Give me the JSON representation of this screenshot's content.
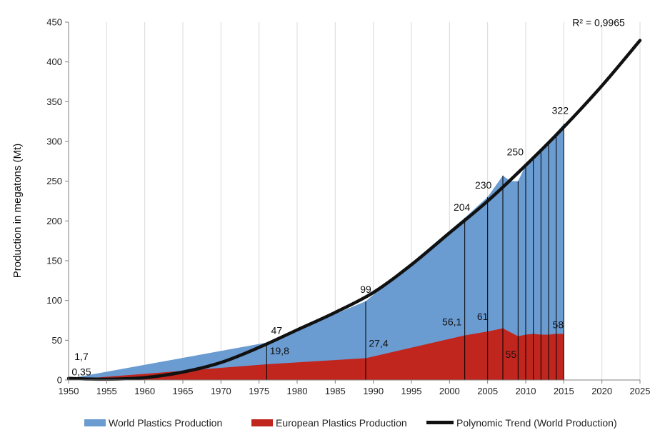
{
  "chart_data": {
    "type": "area",
    "ylabel": "Production in megatons (Mt)",
    "xlabel": "",
    "xlim": [
      1950,
      2025
    ],
    "ylim": [
      0,
      450
    ],
    "x_ticks": [
      1950,
      1955,
      1960,
      1965,
      1970,
      1975,
      1980,
      1985,
      1990,
      1995,
      2000,
      2005,
      2010,
      2015,
      2020,
      2025
    ],
    "y_ticks": [
      0,
      50,
      100,
      150,
      200,
      250,
      300,
      350,
      400,
      450
    ],
    "x_tick_labels": [
      "1950",
      "1955",
      "1960",
      "1965",
      "1970",
      "1975",
      "1980",
      "1985",
      "1990",
      "1995",
      "2000",
      "2005",
      "2010",
      "2015",
      "2020",
      "2025"
    ],
    "y_tick_labels": [
      "0",
      "50",
      "100",
      "150",
      "200",
      "250",
      "300",
      "350",
      "400",
      "450"
    ],
    "grid": "vertical",
    "legend_position": "bottom",
    "series": [
      {
        "name": "World Plastics Production",
        "color": "#6a9bd1",
        "x": [
          1950,
          1976,
          1989,
          2002,
          2005,
          2007,
          2008,
          2009,
          2010,
          2011,
          2012,
          2013,
          2014,
          2015
        ],
        "values": [
          1.7,
          47,
          99,
          204,
          230,
          257,
          250,
          250,
          270,
          280,
          288,
          299,
          311,
          322
        ]
      },
      {
        "name": "European Plastics Production",
        "color": "#c0251e",
        "x": [
          1950,
          1976,
          1989,
          2002,
          2005,
          2007,
          2008,
          2009,
          2010,
          2011,
          2012,
          2013,
          2014,
          2015
        ],
        "values": [
          0.35,
          19.8,
          27.4,
          56.1,
          61,
          65,
          60,
          55,
          57,
          58,
          57,
          57,
          58,
          58
        ]
      },
      {
        "name": "Polynomic Trend (World Production)",
        "color": "#111111",
        "x": [
          1950,
          1955,
          1960,
          1965,
          1970,
          1975,
          1980,
          1985,
          1990,
          1995,
          2000,
          2005,
          2010,
          2015,
          2020,
          2025
        ],
        "values": [
          2,
          1,
          3,
          10,
          22,
          41,
          63,
          85,
          110,
          145,
          185,
          225,
          270,
          318,
          370,
          427
        ]
      }
    ],
    "drop_lines_x": [
      1976,
      1989,
      2002,
      2005,
      2007,
      2009,
      2010,
      2011,
      2012,
      2013,
      2014,
      2015
    ],
    "annotations": [
      {
        "text": "1,7",
        "x": 1950,
        "y": 1.7,
        "placement": "above"
      },
      {
        "text": "0,35",
        "x": 1950,
        "y": 0.35,
        "placement": "near"
      },
      {
        "text": "47",
        "x": 1976,
        "y": 47,
        "placement": "above"
      },
      {
        "text": "19,8",
        "x": 1976,
        "y": 19.8,
        "placement": "above"
      },
      {
        "text": "99",
        "x": 1989,
        "y": 99,
        "placement": "above"
      },
      {
        "text": "27,4",
        "x": 1989,
        "y": 27.4,
        "placement": "above"
      },
      {
        "text": "204",
        "x": 2002,
        "y": 204,
        "placement": "above"
      },
      {
        "text": "56,1",
        "x": 2002,
        "y": 56.1,
        "placement": "above"
      },
      {
        "text": "230",
        "x": 2005,
        "y": 230,
        "placement": "above"
      },
      {
        "text": "61",
        "x": 2005,
        "y": 61,
        "placement": "above"
      },
      {
        "text": "250",
        "x": 2009,
        "y": 250,
        "placement": "above"
      },
      {
        "text": "55",
        "x": 2009,
        "y": 55,
        "placement": "below"
      },
      {
        "text": "322",
        "x": 2015,
        "y": 322,
        "placement": "above"
      },
      {
        "text": "58",
        "x": 2015,
        "y": 58,
        "placement": "above"
      },
      {
        "text": "R² = 0,9965",
        "x": 2025,
        "y": 427,
        "placement": "above-left"
      }
    ]
  }
}
